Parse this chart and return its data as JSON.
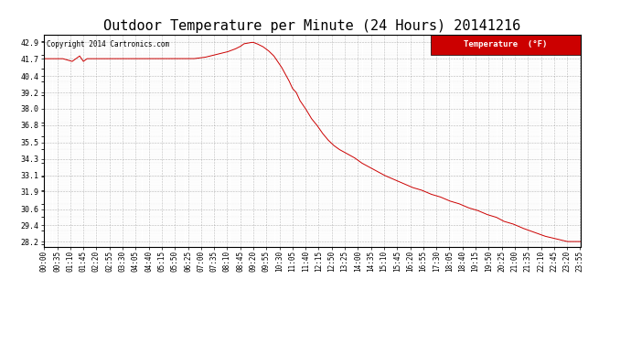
{
  "title": "Outdoor Temperature per Minute (24 Hours) 20141216",
  "copyright": "Copyright 2014 Cartronics.com",
  "legend_label": "Temperature  (°F)",
  "line_color": "#cc0000",
  "background_color": "#ffffff",
  "grid_color": "#999999",
  "yticks": [
    28.2,
    29.4,
    30.6,
    31.9,
    33.1,
    34.3,
    35.5,
    36.8,
    38.0,
    39.2,
    40.4,
    41.7,
    42.9
  ],
  "ylim": [
    27.8,
    43.5
  ],
  "title_fontsize": 11,
  "tick_fontsize": 5.5,
  "xtick_interval_minutes": 35,
  "total_minutes": 1436,
  "key_points": [
    [
      0,
      41.7
    ],
    [
      50,
      41.7
    ],
    [
      75,
      41.5
    ],
    [
      85,
      41.7
    ],
    [
      95,
      41.9
    ],
    [
      105,
      41.5
    ],
    [
      115,
      41.7
    ],
    [
      140,
      41.7
    ],
    [
      200,
      41.7
    ],
    [
      260,
      41.7
    ],
    [
      320,
      41.7
    ],
    [
      360,
      41.7
    ],
    [
      400,
      41.7
    ],
    [
      430,
      41.8
    ],
    [
      460,
      42.0
    ],
    [
      490,
      42.2
    ],
    [
      510,
      42.4
    ],
    [
      525,
      42.6
    ],
    [
      535,
      42.8
    ],
    [
      545,
      42.85
    ],
    [
      555,
      42.9
    ],
    [
      560,
      42.9
    ],
    [
      570,
      42.8
    ],
    [
      585,
      42.6
    ],
    [
      600,
      42.3
    ],
    [
      615,
      41.9
    ],
    [
      625,
      41.5
    ],
    [
      635,
      41.1
    ],
    [
      645,
      40.6
    ],
    [
      655,
      40.1
    ],
    [
      665,
      39.5
    ],
    [
      675,
      39.2
    ],
    [
      685,
      38.6
    ],
    [
      700,
      38.0
    ],
    [
      715,
      37.3
    ],
    [
      730,
      36.8
    ],
    [
      745,
      36.2
    ],
    [
      760,
      35.7
    ],
    [
      775,
      35.3
    ],
    [
      790,
      35.0
    ],
    [
      810,
      34.7
    ],
    [
      830,
      34.4
    ],
    [
      850,
      34.0
    ],
    [
      870,
      33.7
    ],
    [
      890,
      33.4
    ],
    [
      910,
      33.1
    ],
    [
      935,
      32.8
    ],
    [
      960,
      32.5
    ],
    [
      985,
      32.2
    ],
    [
      1010,
      32.0
    ],
    [
      1035,
      31.7
    ],
    [
      1060,
      31.5
    ],
    [
      1085,
      31.2
    ],
    [
      1110,
      31.0
    ],
    [
      1135,
      30.7
    ],
    [
      1160,
      30.5
    ],
    [
      1185,
      30.2
    ],
    [
      1210,
      30.0
    ],
    [
      1230,
      29.7
    ],
    [
      1255,
      29.5
    ],
    [
      1280,
      29.2
    ],
    [
      1310,
      28.9
    ],
    [
      1340,
      28.6
    ],
    [
      1370,
      28.4
    ],
    [
      1400,
      28.2
    ],
    [
      1436,
      28.2
    ]
  ]
}
